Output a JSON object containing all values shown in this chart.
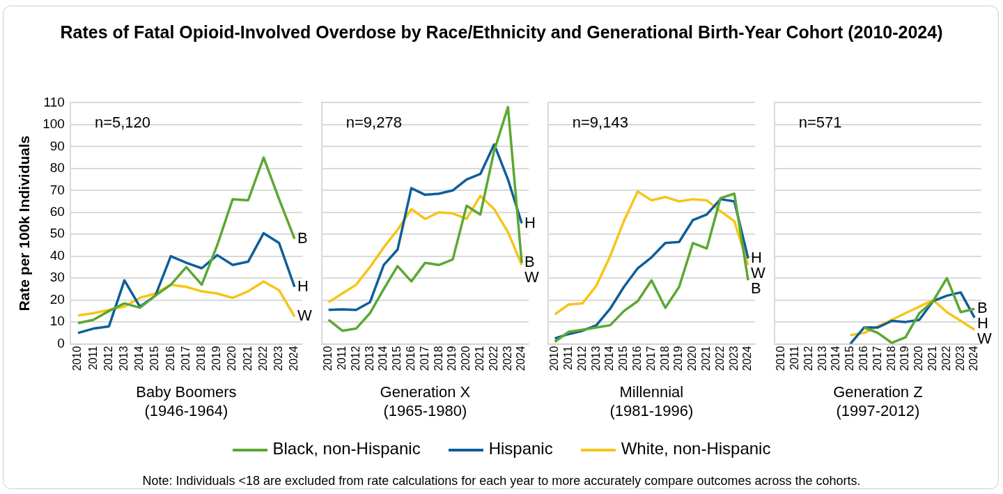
{
  "chart_data": [
    {
      "type": "line",
      "title": "Rates of Fatal Opioid-Involved Overdose by Race/Ethnicity and Generational Birth-Year Cohort (2010-2024)",
      "xlabel": "Baby Boomers\n(1946-1964)",
      "ylabel": "Rate per 100k Individuals",
      "categories": [
        "2010",
        "2011",
        "2012",
        "2013",
        "2014",
        "2015",
        "2016",
        "2017",
        "2018",
        "2019",
        "2020",
        "2021",
        "2022",
        "2023",
        "2024"
      ],
      "ylim": [
        0,
        110
      ],
      "yticks": [
        0,
        10,
        20,
        30,
        40,
        50,
        60,
        70,
        80,
        90,
        100,
        110
      ],
      "grid": "y",
      "legend": "bottom",
      "series": [
        {
          "name": "Black, non-Hispanic",
          "color": "#5aa832",
          "values": [
            9.5,
            11,
            15,
            18.5,
            16.5,
            22,
            27,
            35,
            27,
            45,
            66,
            65.5,
            85,
            66,
            48
          ]
        },
        {
          "name": "Hispanic",
          "color": "#0e5e99",
          "values": [
            5,
            7,
            8,
            29,
            17,
            22,
            40,
            37,
            34.5,
            40.5,
            36,
            37.5,
            50.5,
            46,
            26
          ]
        },
        {
          "name": "White, non-Hispanic",
          "color": "#f5c518",
          "values": [
            13,
            14,
            15.5,
            17,
            21,
            23,
            27,
            26,
            24,
            23,
            21,
            24,
            28.5,
            24.5,
            12.5
          ]
        }
      ],
      "annotations": [
        "n=5,120",
        {
          "text": "B",
          "x": "2024",
          "y": 48
        },
        {
          "text": "H",
          "x": "2024",
          "y": 26
        },
        {
          "text": "W",
          "x": "2024",
          "y": 12.5
        }
      ]
    },
    {
      "type": "line",
      "xlabel": "Generation X\n(1965-1980)",
      "categories": [
        "2010",
        "2011",
        "2012",
        "2013",
        "2014",
        "2015",
        "2016",
        "2017",
        "2018",
        "2019",
        "2020",
        "2021",
        "2022",
        "2023",
        "2024"
      ],
      "ylim": [
        0,
        110
      ],
      "yticks": [
        0,
        10,
        20,
        30,
        40,
        50,
        60,
        70,
        80,
        90,
        100,
        110
      ],
      "grid": "y",
      "tick_labels": "x",
      "series": [
        {
          "color": "#5aa832",
          "values": [
            11,
            6,
            7,
            14,
            25,
            35.5,
            28.5,
            37,
            36,
            38.5,
            63,
            59,
            88,
            108,
            37
          ]
        },
        {
          "color": "#0e5e99",
          "values": [
            15.5,
            15.8,
            15.5,
            19,
            36,
            43,
            71,
            68,
            68.5,
            70,
            75,
            77.5,
            91,
            75,
            55
          ]
        },
        {
          "color": "#f5c518",
          "values": [
            19,
            23,
            27,
            35,
            44,
            52,
            61.5,
            57,
            60,
            59.5,
            57,
            67.5,
            61.5,
            51,
            36
          ]
        }
      ],
      "annotations": [
        "n=9,278",
        {
          "text": "H",
          "x": "2024",
          "y": 55
        },
        {
          "text": "B",
          "x": "2024",
          "y": 37
        },
        {
          "text": "W",
          "x": "2024",
          "y": 36
        }
      ]
    },
    {
      "type": "line",
      "xlabel": "Millennial\n(1981-1996)",
      "categories": [
        "2010",
        "2011",
        "2012",
        "2013",
        "2014",
        "2015",
        "2016",
        "2017",
        "2018",
        "2019",
        "2020",
        "2021",
        "2022",
        "2023",
        "2024"
      ],
      "ylim": [
        0,
        110
      ],
      "yticks": [
        0,
        10,
        20,
        30,
        40,
        50,
        60,
        70,
        80,
        90,
        100,
        110
      ],
      "grid": "y",
      "tick_labels": "x",
      "series": [
        {
          "color": "#5aa832",
          "values": [
            1,
            5.5,
            6.5,
            7.5,
            8.5,
            15,
            19.5,
            29,
            16.5,
            26,
            46,
            43.5,
            66.5,
            68.5,
            29
          ]
        },
        {
          "color": "#0e5e99",
          "values": [
            2.5,
            4.5,
            6,
            8.5,
            16,
            26,
            34.5,
            39.5,
            46,
            46.5,
            56.5,
            59,
            66,
            65,
            39
          ]
        },
        {
          "color": "#f5c518",
          "values": [
            13.5,
            18,
            18.5,
            26.5,
            40,
            56,
            69.5,
            65.5,
            67,
            65,
            66,
            65.5,
            60.5,
            56,
            36
          ]
        }
      ],
      "annotations": [
        "n=9,143",
        {
          "text": "H",
          "x": "2024",
          "y": 39
        },
        {
          "text": "W",
          "x": "2024",
          "y": 36
        },
        {
          "text": "B",
          "x": "2024",
          "y": 29
        }
      ]
    },
    {
      "type": "line",
      "xlabel": "Generation Z\n(1997-2012)",
      "categories": [
        "2010",
        "2011",
        "2012",
        "2013",
        "2014",
        "2015",
        "2016",
        "2017",
        "2018",
        "2019",
        "2020",
        "2021",
        "2022",
        "2023",
        "2024"
      ],
      "ylim": [
        0,
        110
      ],
      "yticks": [
        0,
        10,
        20,
        30,
        40,
        50,
        60,
        70,
        80,
        90,
        100,
        110
      ],
      "grid": "y",
      "tick_labels": "x",
      "series": [
        {
          "color": "#5aa832",
          "values": [
            null,
            null,
            null,
            null,
            null,
            null,
            7.5,
            5,
            0.5,
            3,
            14,
            19.5,
            30,
            14.5,
            16
          ]
        },
        {
          "color": "#0e5e99",
          "values": [
            null,
            null,
            null,
            null,
            null,
            0,
            7.5,
            7.5,
            10.5,
            10,
            11,
            19.5,
            22,
            23.5,
            12
          ]
        },
        {
          "color": "#f5c518",
          "values": [
            null,
            null,
            null,
            null,
            null,
            4,
            5,
            8,
            11,
            14,
            17,
            20,
            14.5,
            10.5,
            6.5
          ]
        }
      ],
      "annotations": [
        "n=571",
        {
          "text": "B",
          "x": "2024",
          "y": 16
        },
        {
          "text": "H",
          "x": "2024",
          "y": 12
        },
        {
          "text": "W",
          "x": "2024",
          "y": 6.5
        },
        "Note: Individuals <18 are excluded from rate calculations for each year to more accurately compare outcomes across the cohorts."
      ]
    }
  ]
}
